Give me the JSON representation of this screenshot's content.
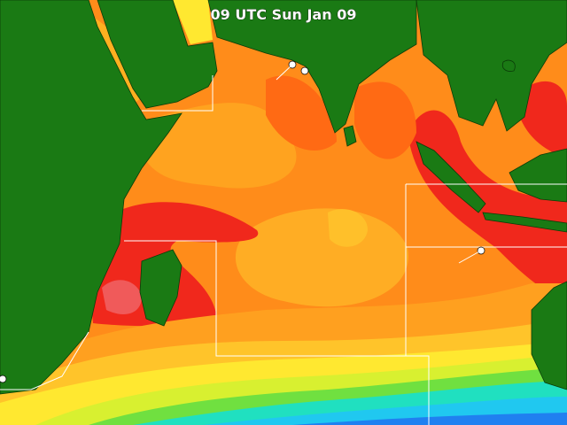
{
  "header": {
    "title": "09 UTC Sun Jan 09"
  }
}
